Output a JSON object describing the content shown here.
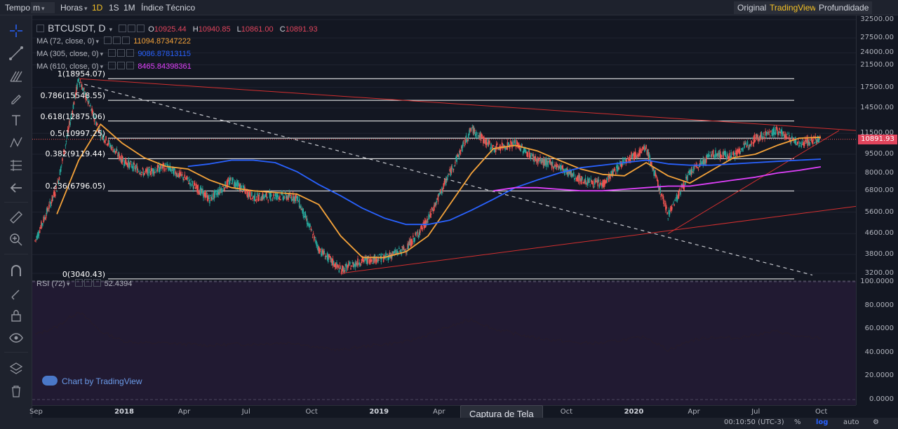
{
  "toolbar": {
    "time_label": "Tempo",
    "interval_unit": "m",
    "hours_label": "Horas",
    "ranges": [
      "1D",
      "1S",
      "1M"
    ],
    "active_range": "1D",
    "indicators_label": "Índice Técnico",
    "original_label": "Original",
    "tradingview_label": "TradingView",
    "depth_label": "Profundidade"
  },
  "legend": {
    "symbol": "BTCUSDT, D",
    "o_label": "O",
    "o_value": "10925.44",
    "h_label": "H",
    "h_value": "10940.85",
    "l_label": "L",
    "l_value": "10861.00",
    "c_label": "C",
    "c_value": "10891.93",
    "ma72_label": "MA (72, close, 0)",
    "ma72_value": "11094.87347222",
    "ma305_label": "MA (305, close, 0)",
    "ma305_value": "9086.87813115",
    "ma610_label": "MA (610, close, 0)",
    "ma610_value": "8465.84398361",
    "rsi_label": "RSI (72)",
    "rsi_value": "52.4394"
  },
  "colors": {
    "background": "#131722",
    "up": "#26a69a",
    "down": "#ef5350",
    "ma72": "#f5a33a",
    "ma305": "#2962ff",
    "ma610": "#e040fb",
    "trend": "#d32f2f",
    "fib": "#ffffff",
    "rsi": "#1a1a1a"
  },
  "price_scale": {
    "ticks": [
      "32500.00",
      "27500.00",
      "24000.00",
      "21500.00",
      "17500.00",
      "14500.00",
      "11500.00",
      "9500.00",
      "8000.00",
      "6800.00",
      "5600.00",
      "4600.00",
      "3800.00",
      "3200.00"
    ],
    "last_price": "10891.93"
  },
  "rsi_scale": {
    "ticks": [
      "100.0000",
      "80.0000",
      "60.0000",
      "40.0000",
      "20.0000",
      "0.0000"
    ]
  },
  "time_scale": {
    "ticks": [
      "Sep",
      "2018",
      "Apr",
      "Jul",
      "Oct",
      "2019",
      "Apr",
      "Jul",
      "Oct",
      "2020",
      "Apr",
      "Jul",
      "Oct"
    ]
  },
  "bottom": {
    "clock": "00:10:50 (UTC-3)",
    "percent": "%",
    "log": "log",
    "auto": "auto"
  },
  "tooltip": "Captura de Tela",
  "watermark": "Chart by TradingView",
  "chart_data": {
    "type": "line",
    "title": "BTCUSDT, D",
    "y_scale": "log",
    "ylim": [
      3000,
      32500
    ],
    "x": [
      "2017-09",
      "2017-11",
      "2017-12",
      "2018-01",
      "2018-02",
      "2018-03",
      "2018-04",
      "2018-05",
      "2018-06",
      "2018-07",
      "2018-08",
      "2018-09",
      "2018-10",
      "2018-11",
      "2018-12",
      "2019-01",
      "2019-02",
      "2019-03",
      "2019-04",
      "2019-05",
      "2019-06",
      "2019-07",
      "2019-08",
      "2019-09",
      "2019-10",
      "2019-11",
      "2019-12",
      "2020-01",
      "2020-02",
      "2020-03",
      "2020-04",
      "2020-05",
      "2020-06",
      "2020-07",
      "2020-08",
      "2020-09",
      "2020-10"
    ],
    "series": [
      {
        "name": "BTCUSDT",
        "values": [
          4300,
          7000,
          18954,
          11500,
          9000,
          8000,
          8500,
          7500,
          6300,
          7500,
          6400,
          6500,
          6400,
          4000,
          3300,
          3600,
          3700,
          4000,
          5200,
          8000,
          12000,
          10000,
          10500,
          9000,
          8500,
          7500,
          7200,
          9000,
          10000,
          5500,
          8000,
          9500,
          9400,
          11000,
          11800,
          10500,
          10892
        ]
      },
      {
        "name": "MA (72, close, 0)",
        "values": [
          null,
          5500,
          9000,
          12500,
          10500,
          9200,
          8500,
          8300,
          7500,
          7000,
          6800,
          6700,
          6600,
          6000,
          4500,
          3700,
          3700,
          3900,
          4500,
          6000,
          8000,
          10000,
          10300,
          9800,
          9000,
          8300,
          7900,
          7800,
          8800,
          7800,
          7300,
          8200,
          9200,
          9500,
          10300,
          11000,
          11095
        ]
      },
      {
        "name": "MA (305, close, 0)",
        "values": [
          null,
          null,
          null,
          null,
          null,
          null,
          null,
          8500,
          8700,
          9000,
          9000,
          8800,
          8100,
          7200,
          6500,
          5800,
          5300,
          5000,
          5000,
          5200,
          5700,
          6300,
          7000,
          7500,
          8000,
          8400,
          8600,
          8800,
          9000,
          8700,
          8600,
          8600,
          8700,
          8800,
          8900,
          9000,
          9087
        ]
      },
      {
        "name": "MA (610, close, 0)",
        "values": [
          null,
          null,
          null,
          null,
          null,
          null,
          null,
          null,
          null,
          null,
          null,
          null,
          null,
          null,
          null,
          null,
          null,
          null,
          null,
          null,
          null,
          6800,
          7000,
          7000,
          6900,
          6800,
          6800,
          6900,
          7000,
          7100,
          7100,
          7300,
          7500,
          7700,
          8000,
          8200,
          8466
        ]
      }
    ],
    "fibonacci": [
      {
        "label": "1(18954.07)",
        "value": 18954.07
      },
      {
        "label": "0.786(15548.55)",
        "value": 15548.55
      },
      {
        "label": "0.618(12875.06)",
        "value": 12875.06
      },
      {
        "label": "0.5(10997.25)",
        "value": 10997.25
      },
      {
        "label": "0.382(9119.44)",
        "value": 9119.44
      },
      {
        "label": "0.236(6796.05)",
        "value": 6796.05
      },
      {
        "label": "0(3040.43)",
        "value": 3040.43
      }
    ],
    "rsi": {
      "name": "RSI (72)",
      "ylim": [
        0,
        100
      ],
      "values": [
        55,
        62,
        75,
        58,
        50,
        48,
        48,
        47,
        46,
        47,
        47,
        48,
        48,
        44,
        42,
        45,
        47,
        49,
        55,
        62,
        68,
        60,
        56,
        52,
        50,
        48,
        48,
        51,
        53,
        42,
        50,
        53,
        52,
        55,
        58,
        53,
        52.4394
      ]
    }
  }
}
